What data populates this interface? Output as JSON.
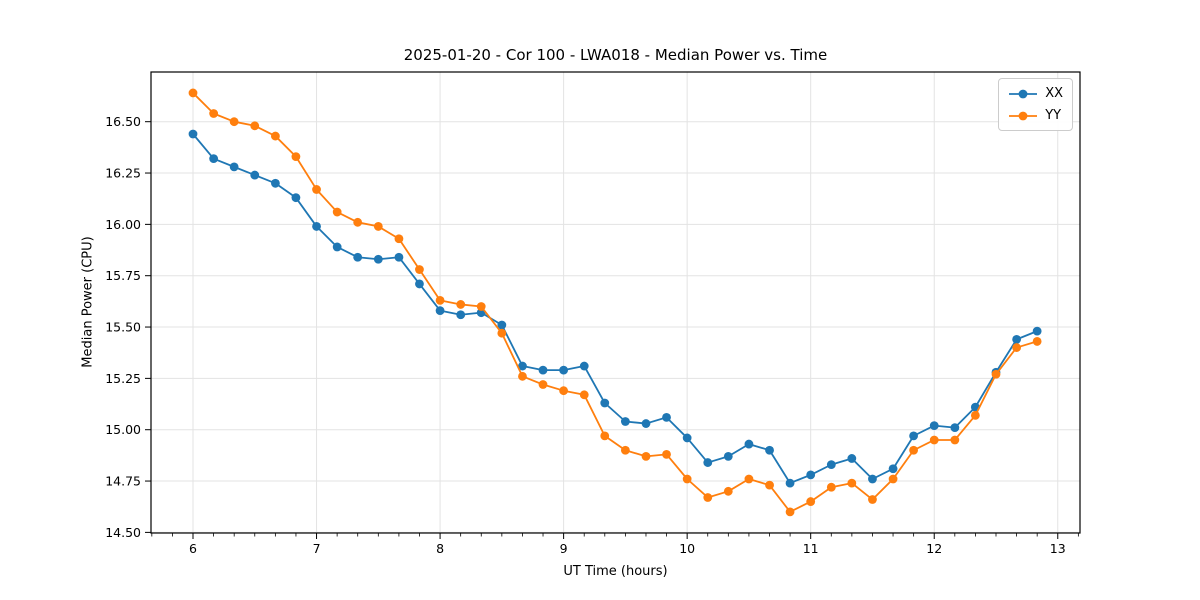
{
  "chart_data": {
    "type": "line",
    "title": "2025-01-20 - Cor 100 - LWA018 - Median Power vs. Time",
    "xlabel": "UT Time (hours)",
    "ylabel": "Median Power (CPU)",
    "xlim": [
      5.66,
      13.18
    ],
    "ylim": [
      14.497,
      16.742
    ],
    "x_ticks": [
      6,
      7,
      8,
      9,
      10,
      11,
      12,
      13
    ],
    "x_minor_step": 0.1666667,
    "y_ticks": [
      14.5,
      14.75,
      15.0,
      15.25,
      15.5,
      15.75,
      16.0,
      16.25,
      16.5
    ],
    "grid": true,
    "grid_color": "#e3e3e3",
    "spine_color": "#000000",
    "background": "#ffffff",
    "legend_position": "top-right",
    "marker": "circle",
    "x": [
      6.0,
      6.167,
      6.333,
      6.5,
      6.667,
      6.833,
      7.0,
      7.167,
      7.333,
      7.5,
      7.667,
      7.833,
      8.0,
      8.167,
      8.333,
      8.5,
      8.667,
      8.833,
      9.0,
      9.167,
      9.333,
      9.5,
      9.667,
      9.833,
      10.0,
      10.167,
      10.333,
      10.5,
      10.667,
      10.833,
      11.0,
      11.167,
      11.333,
      11.5,
      11.667,
      11.833,
      12.0,
      12.167,
      12.333,
      12.5,
      12.667,
      12.833
    ],
    "series": [
      {
        "name": "XX",
        "color": "#1f77b4",
        "values": [
          16.44,
          16.32,
          16.28,
          16.24,
          16.2,
          16.13,
          15.99,
          15.89,
          15.84,
          15.83,
          15.84,
          15.71,
          15.58,
          15.56,
          15.57,
          15.51,
          15.31,
          15.29,
          15.29,
          15.31,
          15.13,
          15.04,
          15.03,
          15.06,
          14.96,
          14.84,
          14.87,
          14.93,
          14.9,
          14.74,
          14.78,
          14.83,
          14.86,
          14.76,
          14.81,
          14.97,
          15.02,
          15.01,
          15.11,
          15.28,
          15.44,
          15.48
        ]
      },
      {
        "name": "YY",
        "color": "#ff7f0e",
        "values": [
          16.64,
          16.54,
          16.5,
          16.48,
          16.43,
          16.33,
          16.17,
          16.06,
          16.01,
          15.99,
          15.93,
          15.78,
          15.63,
          15.61,
          15.6,
          15.47,
          15.26,
          15.22,
          15.19,
          15.17,
          14.97,
          14.9,
          14.87,
          14.88,
          14.76,
          14.67,
          14.7,
          14.76,
          14.73,
          14.6,
          14.65,
          14.72,
          14.74,
          14.66,
          14.76,
          14.9,
          14.95,
          14.95,
          15.07,
          15.27,
          15.4,
          15.43
        ]
      }
    ]
  }
}
